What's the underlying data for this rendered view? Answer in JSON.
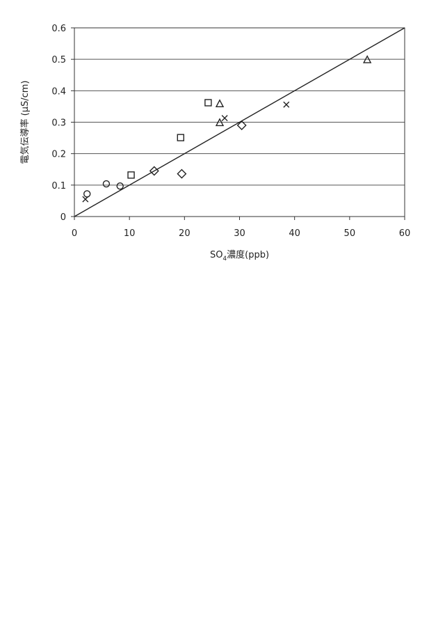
{
  "chart_data": {
    "type": "scatter",
    "xlabel": "SO",
    "xlabel_sub": "4",
    "xlabel_suffix": "濃度(ppb)",
    "ylabel": "電気伝導率 (μS/cm)",
    "xlim": [
      0,
      60
    ],
    "ylim": [
      0,
      0.6
    ],
    "x_ticks": [
      0,
      10,
      20,
      30,
      40,
      50,
      60
    ],
    "y_ticks": [
      0,
      0.1,
      0.2,
      0.3,
      0.4,
      0.5,
      0.6
    ],
    "x_tick_labels": [
      "0",
      "10",
      "20",
      "30",
      "40",
      "50",
      "60"
    ],
    "y_tick_labels": [
      "0",
      "0.1",
      "0.2",
      "0.3",
      "0.4",
      "0.5",
      "0.6"
    ],
    "grid": "horizontal",
    "series": [
      {
        "marker": "circle",
        "points": [
          [
            2.3,
            0.072
          ],
          [
            5.8,
            0.104
          ],
          [
            8.3,
            0.097
          ]
        ]
      },
      {
        "marker": "square",
        "points": [
          [
            10.3,
            0.132
          ],
          [
            19.3,
            0.251
          ],
          [
            24.3,
            0.362
          ]
        ]
      },
      {
        "marker": "diamond",
        "points": [
          [
            14.5,
            0.145
          ],
          [
            19.5,
            0.136
          ],
          [
            30.4,
            0.29
          ]
        ]
      },
      {
        "marker": "triangle",
        "points": [
          [
            26.4,
            0.298
          ],
          [
            26.4,
            0.358
          ],
          [
            53.2,
            0.498
          ]
        ]
      },
      {
        "marker": "cross",
        "points": [
          [
            2.0,
            0.055
          ],
          [
            27.3,
            0.313
          ],
          [
            38.5,
            0.356
          ]
        ]
      }
    ],
    "fit_line": {
      "from": [
        0,
        0
      ],
      "to": [
        60,
        0.6
      ]
    }
  }
}
